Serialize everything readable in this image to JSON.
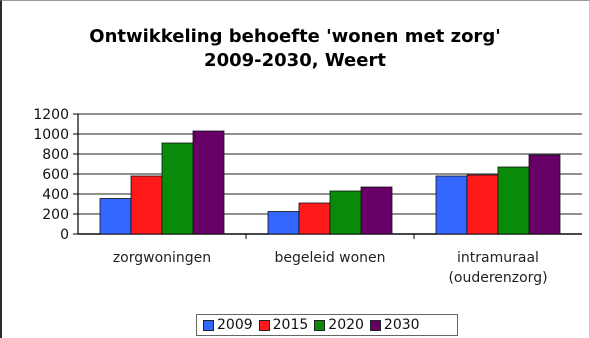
{
  "chart_data": {
    "type": "bar",
    "title_lines": [
      "Ontwikkeling behoefte 'wonen met zorg'",
      "2009-2030, Weert"
    ],
    "categories": [
      [
        "zorgwoningen"
      ],
      [
        "begeleid wonen"
      ],
      [
        "intramuraal",
        "(ouderenzorg)"
      ]
    ],
    "series": [
      {
        "name": "2009",
        "color": "#3366ff",
        "values": [
          355,
          225,
          580
        ]
      },
      {
        "name": "2015",
        "color": "#ff1a1a",
        "values": [
          580,
          310,
          590
        ]
      },
      {
        "name": "2020",
        "color": "#0a8a0a",
        "values": [
          910,
          430,
          670
        ]
      },
      {
        "name": "2030",
        "color": "#660066",
        "values": [
          1030,
          470,
          790
        ]
      }
    ],
    "ylim": [
      0,
      1200
    ],
    "yticks": [
      0,
      200,
      400,
      600,
      800,
      1000,
      1200
    ],
    "grid": true,
    "legend_position": "bottom"
  }
}
